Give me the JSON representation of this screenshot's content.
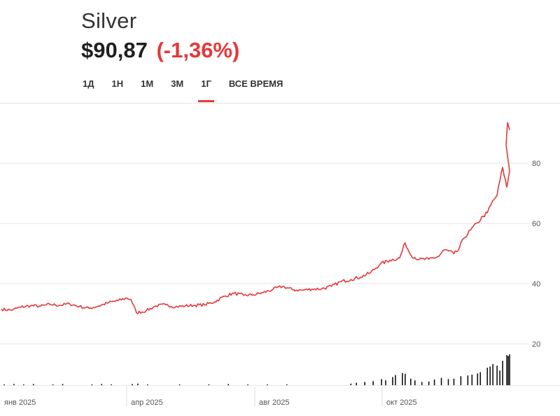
{
  "header": {
    "title": "Silver",
    "price": "$90,87",
    "change": "(-1,36%)"
  },
  "tabs": [
    {
      "label": "1Д",
      "active": false
    },
    {
      "label": "1Н",
      "active": false
    },
    {
      "label": "1М",
      "active": false
    },
    {
      "label": "3М",
      "active": false
    },
    {
      "label": "1Г",
      "active": true
    },
    {
      "label": "ВСЕ ВРЕМЯ",
      "active": false
    }
  ],
  "colors": {
    "accent": "#e5383b",
    "line": "#e5383b",
    "volume": "#111111",
    "grid": "#e6e6e6",
    "axis_text": "#555555"
  },
  "chart_data": {
    "type": "line",
    "title": "Silver",
    "xlabel": "",
    "ylabel": "",
    "ylim": [
      20,
      95
    ],
    "y_ticks": [
      20,
      40,
      60,
      80
    ],
    "x_ticks": [
      {
        "date": "2025-01-01",
        "label": "янв 2025"
      },
      {
        "date": "2025-04-01",
        "label": "апр 2025"
      },
      {
        "date": "2025-08-01",
        "label": "авг 2025"
      },
      {
        "date": "2025-10-01",
        "label": "окт 2025"
      }
    ],
    "x_range": [
      "2025-01-01",
      "2025-12-31"
    ],
    "grid": true,
    "series": [
      {
        "values": [
          [
            "2024-12-31",
            31.5
          ],
          [
            "2025-01-07",
            31.2
          ],
          [
            "2025-01-14",
            32.2
          ],
          [
            "2025-01-21",
            32.7
          ],
          [
            "2025-01-28",
            32.5
          ],
          [
            "2025-02-04",
            33.1
          ],
          [
            "2025-02-11",
            32.8
          ],
          [
            "2025-02-18",
            33.3
          ],
          [
            "2025-02-25",
            32.4
          ],
          [
            "2025-03-04",
            31.8
          ],
          [
            "2025-03-11",
            32.6
          ],
          [
            "2025-03-18",
            33.7
          ],
          [
            "2025-03-25",
            34.4
          ],
          [
            "2025-03-31",
            35.2
          ],
          [
            "2025-04-03",
            34.8
          ],
          [
            "2025-04-07",
            30.3
          ],
          [
            "2025-04-14",
            31.0
          ],
          [
            "2025-04-21",
            32.6
          ],
          [
            "2025-04-28",
            33.0
          ],
          [
            "2025-05-05",
            32.3
          ],
          [
            "2025-05-12",
            32.6
          ],
          [
            "2025-05-19",
            32.8
          ],
          [
            "2025-05-26",
            33.0
          ],
          [
            "2025-06-02",
            33.9
          ],
          [
            "2025-06-09",
            35.8
          ],
          [
            "2025-06-16",
            36.8
          ],
          [
            "2025-06-23",
            36.1
          ],
          [
            "2025-06-30",
            36.3
          ],
          [
            "2025-07-07",
            37.0
          ],
          [
            "2025-07-14",
            38.1
          ],
          [
            "2025-07-21",
            39.1
          ],
          [
            "2025-07-28",
            38.0
          ],
          [
            "2025-08-04",
            37.8
          ],
          [
            "2025-08-11",
            38.2
          ],
          [
            "2025-08-18",
            38.3
          ],
          [
            "2025-08-25",
            39.1
          ],
          [
            "2025-09-01",
            40.7
          ],
          [
            "2025-09-08",
            41.4
          ],
          [
            "2025-09-15",
            42.2
          ],
          [
            "2025-09-22",
            43.6
          ],
          [
            "2025-09-29",
            46.5
          ],
          [
            "2025-10-06",
            47.8
          ],
          [
            "2025-10-13",
            48.5
          ],
          [
            "2025-10-17",
            53.5
          ],
          [
            "2025-10-21",
            49.5
          ],
          [
            "2025-10-27",
            48.0
          ],
          [
            "2025-11-03",
            48.1
          ],
          [
            "2025-11-10",
            49.0
          ],
          [
            "2025-11-14",
            51.2
          ],
          [
            "2025-11-17",
            50.9
          ],
          [
            "2025-11-21",
            49.9
          ],
          [
            "2025-11-24",
            51.0
          ],
          [
            "2025-11-28",
            55.0
          ],
          [
            "2025-12-03",
            57.8
          ],
          [
            "2025-12-08",
            60.2
          ],
          [
            "2025-12-12",
            62.4
          ],
          [
            "2025-12-15",
            63.5
          ],
          [
            "2025-12-18",
            66.6
          ],
          [
            "2025-12-22",
            69.4
          ],
          [
            "2025-12-26",
            78.6
          ],
          [
            "2025-12-29",
            72.0
          ],
          [
            "2025-12-31",
            77.5
          ]
        ]
      }
    ],
    "volume": {
      "range": [
        0,
        10
      ],
      "bars": [
        [
          "2025-01-02",
          0.2
        ],
        [
          "2025-01-09",
          0.3
        ],
        [
          "2025-01-16",
          0.2
        ],
        [
          "2025-01-23",
          0.3
        ],
        [
          "2025-02-06",
          0.2
        ],
        [
          "2025-02-13",
          0.3
        ],
        [
          "2025-03-06",
          0.2
        ],
        [
          "2025-03-13",
          0.3
        ],
        [
          "2025-03-20",
          0.2
        ],
        [
          "2025-04-04",
          0.3
        ],
        [
          "2025-04-08",
          0.4
        ],
        [
          "2025-04-15",
          0.2
        ],
        [
          "2025-05-08",
          0.2
        ],
        [
          "2025-05-29",
          0.2
        ],
        [
          "2025-06-12",
          0.3
        ],
        [
          "2025-06-26",
          0.2
        ],
        [
          "2025-07-10",
          0.2
        ],
        [
          "2025-07-24",
          0.2
        ],
        [
          "2025-09-08",
          0.4
        ],
        [
          "2025-09-12",
          0.6
        ],
        [
          "2025-09-18",
          0.8
        ],
        [
          "2025-09-24",
          1.0
        ],
        [
          "2025-09-30",
          1.5
        ],
        [
          "2025-10-03",
          1.2
        ],
        [
          "2025-10-08",
          2.0
        ],
        [
          "2025-10-10",
          2.5
        ],
        [
          "2025-10-15",
          3.0
        ],
        [
          "2025-10-17",
          2.8
        ],
        [
          "2025-10-21",
          1.6
        ],
        [
          "2025-10-24",
          1.2
        ],
        [
          "2025-10-29",
          0.8
        ],
        [
          "2025-11-03",
          0.9
        ],
        [
          "2025-11-07",
          1.4
        ],
        [
          "2025-11-12",
          1.8
        ],
        [
          "2025-11-17",
          1.5
        ],
        [
          "2025-11-21",
          1.6
        ],
        [
          "2025-11-26",
          2.2
        ],
        [
          "2025-12-01",
          2.4
        ],
        [
          "2025-12-04",
          2.6
        ],
        [
          "2025-12-08",
          2.9
        ],
        [
          "2025-12-10",
          3.2
        ],
        [
          "2025-12-15",
          4.3
        ],
        [
          "2025-12-17",
          4.6
        ],
        [
          "2025-12-19",
          5.2
        ],
        [
          "2025-12-22",
          4.8
        ],
        [
          "2025-12-24",
          3.6
        ],
        [
          "2025-12-26",
          6.0
        ],
        [
          "2025-12-29",
          7.4
        ],
        [
          "2025-12-30",
          7.2
        ],
        [
          "2025-12-31",
          7.6
        ]
      ]
    }
  }
}
